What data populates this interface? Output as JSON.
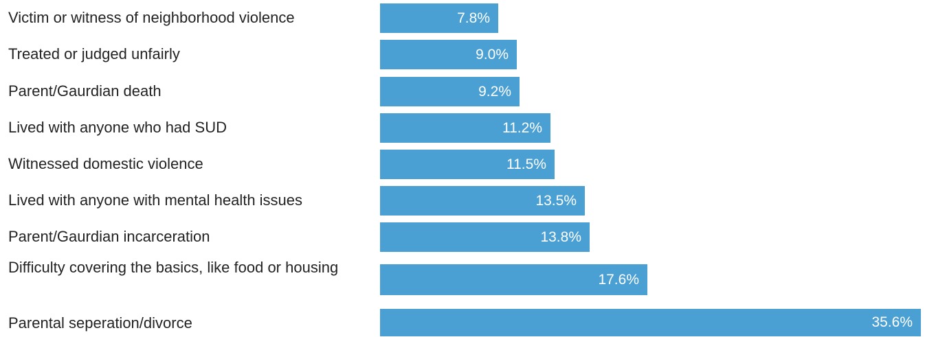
{
  "colors": {
    "bar": "#4aa0d3",
    "label_text": "#222222",
    "value_text": "#ffffff"
  },
  "chart_data": {
    "type": "bar",
    "orientation": "horizontal",
    "categories": [
      "Victim or witness of neighborhood violence",
      "Treated or judged unfairly",
      "Parent/Gaurdian death",
      "Lived with anyone who had SUD",
      "Witnessed domestic violence",
      "Lived with anyone with mental health issues",
      "Parent/Gaurdian incarceration",
      "Difficulty covering the basics, like food or housing",
      "Parental seperation/divorce"
    ],
    "values": [
      7.8,
      9.0,
      9.2,
      11.2,
      11.5,
      13.5,
      13.8,
      17.6,
      35.6
    ],
    "value_labels": [
      "7.8%",
      "9.0%",
      "9.2%",
      "11.2%",
      "11.5%",
      "13.5%",
      "13.8%",
      "17.6%",
      "35.6%"
    ],
    "xlim": [
      0,
      35.6
    ],
    "grid": false,
    "legend": "none"
  }
}
